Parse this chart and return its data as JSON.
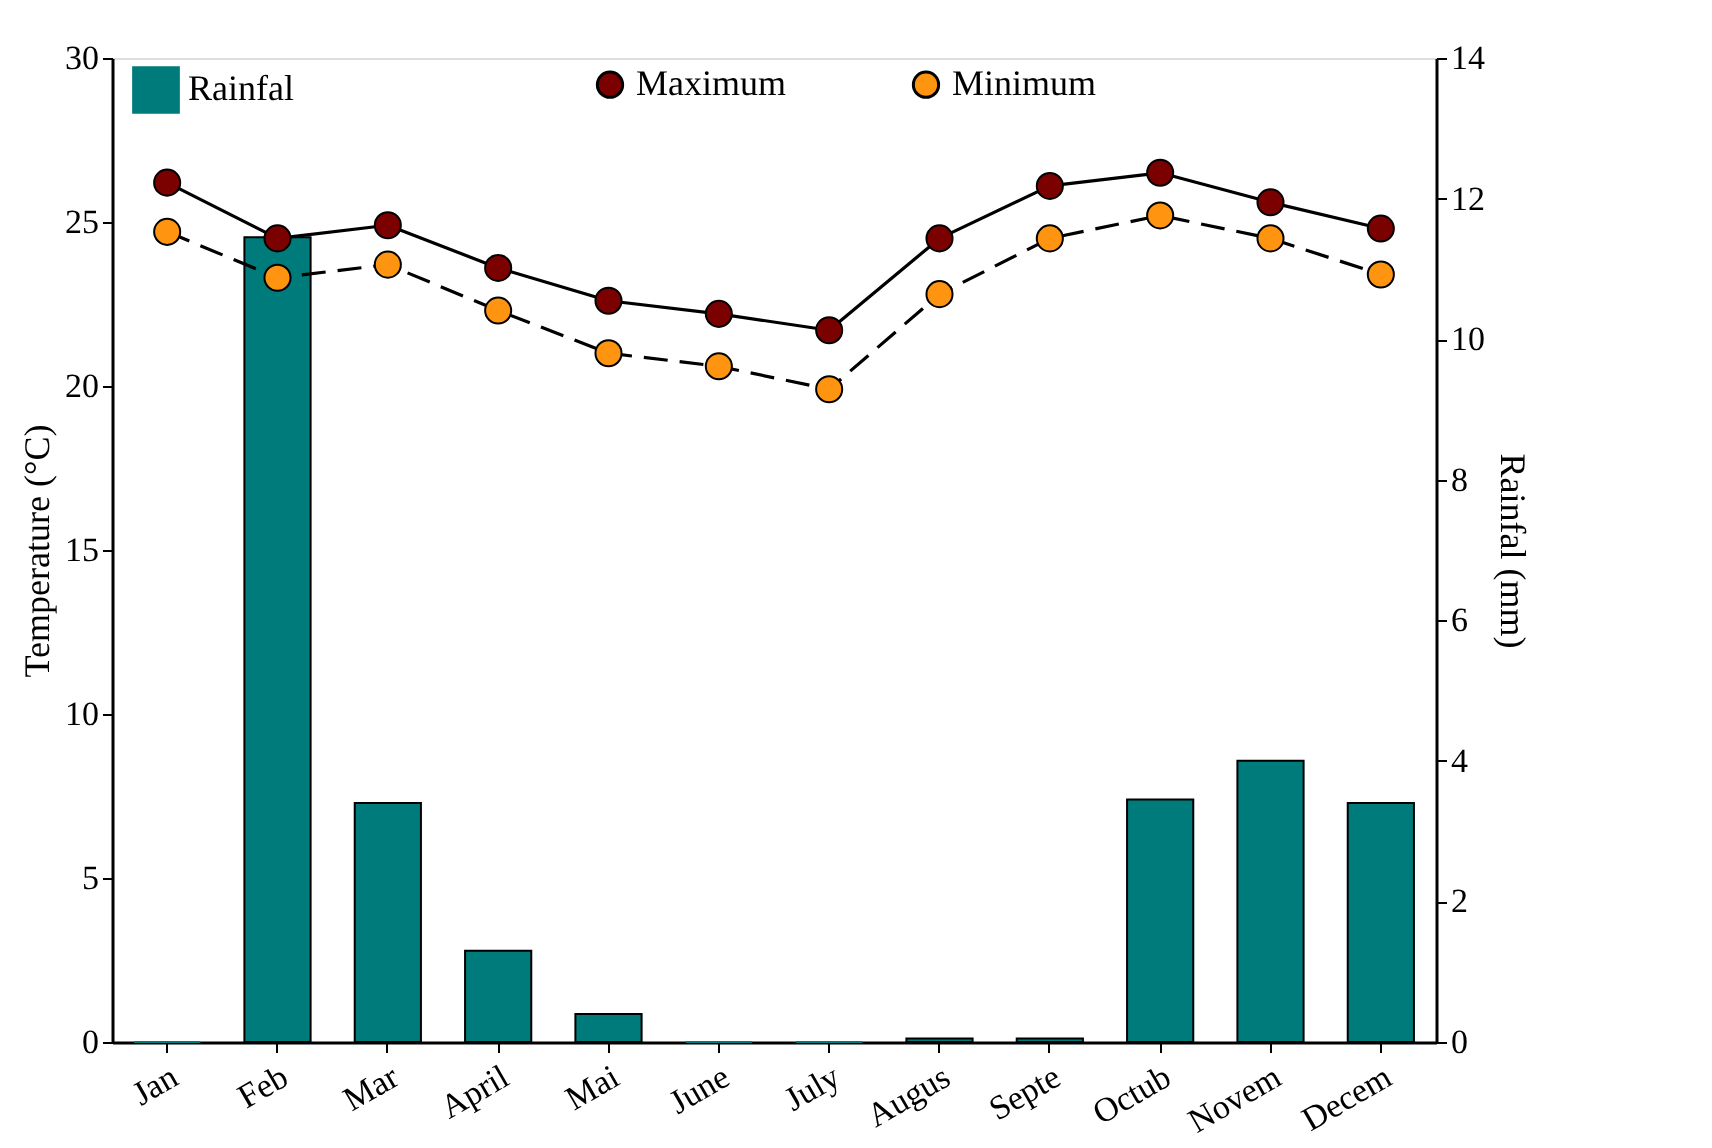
{
  "chart_data": {
    "type": "line",
    "ylabel": "Temperature (°C)",
    "y2label": "Rainfal (mm)",
    "categories": [
      "Jan",
      "Feb",
      "Mar",
      "April",
      "Mai",
      "June",
      "July",
      "Augus",
      "Septe",
      "Octub",
      "Novem",
      "Decem"
    ],
    "series": [
      {
        "name": "Rainfal",
        "type": "bar",
        "axis": "y2",
        "color": "#007b7b",
        "values": [
          0,
          11.45,
          3.4,
          1.3,
          0.4,
          0,
          0,
          0.05,
          0.05,
          3.45,
          4.0,
          3.4
        ]
      },
      {
        "name": "Maximum",
        "line_style": "solid",
        "color": "#7b0000",
        "values": [
          26.2,
          24.5,
          24.9,
          23.6,
          22.6,
          22.2,
          21.7,
          24.5,
          26.1,
          26.5,
          25.6,
          24.8
        ]
      },
      {
        "name": "Minimum",
        "line_style": "dashed",
        "color": "#ff9410",
        "values": [
          24.7,
          23.3,
          23.7,
          22.3,
          21.0,
          20.6,
          19.9,
          22.8,
          24.5,
          25.2,
          24.5,
          23.4
        ]
      }
    ],
    "ylim": [
      0,
      30
    ],
    "yticks": [
      0,
      5,
      10,
      15,
      20,
      25,
      30
    ],
    "y2lim": [
      0,
      14
    ],
    "y2ticks": [
      0,
      2,
      4,
      6,
      8,
      10,
      12,
      14
    ],
    "marker": "circle",
    "legend": "top",
    "grid": false
  }
}
